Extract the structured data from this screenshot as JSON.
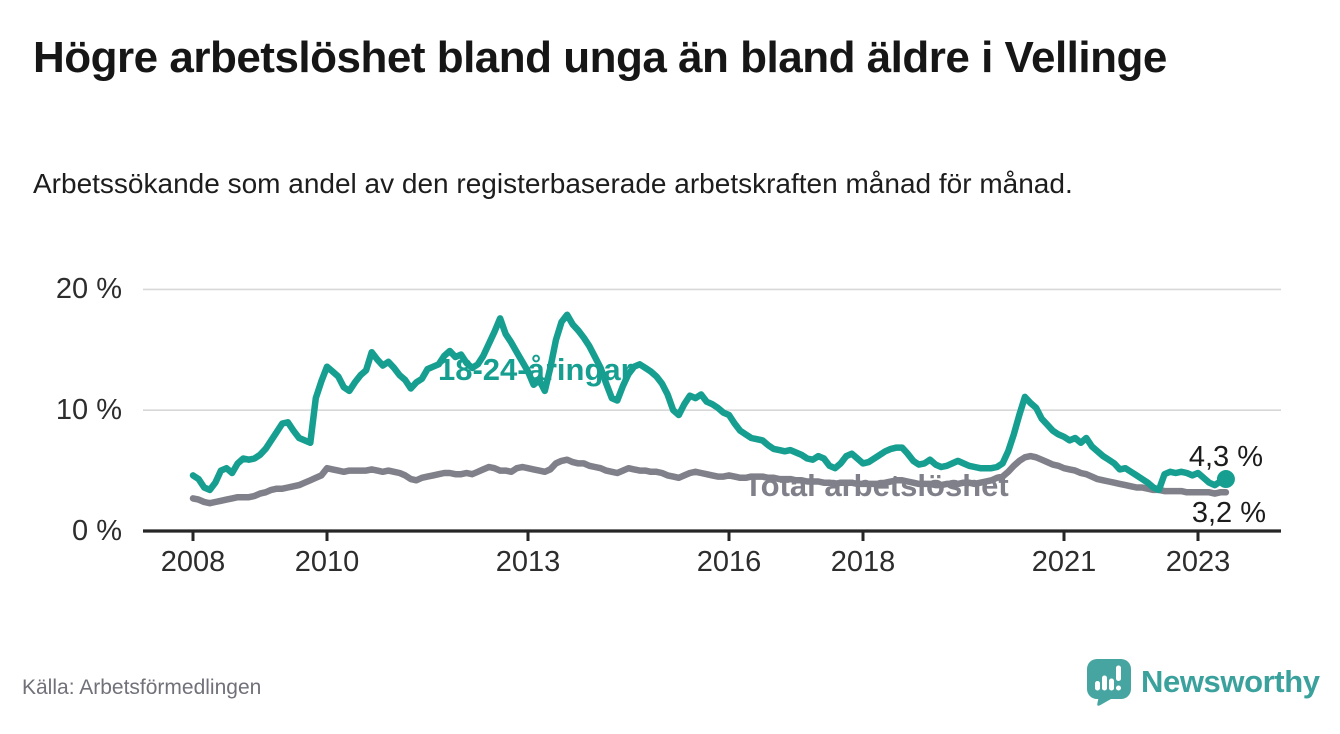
{
  "header": {
    "title": "Högre arbetslöshet bland unga än bland äldre i Vellinge",
    "subtitle": "Arbetssökande som andel av den registerbaserade arbetskraften månad för månad."
  },
  "footer": {
    "source": "Källa: Arbetsförmedlingen",
    "brand": "Newsworthy"
  },
  "colors": {
    "accent_teal": "#169f90",
    "total_gray": "#80808a",
    "gridline": "#d8d8d8",
    "axis": "#262626",
    "brand_teal": "#46a5a1",
    "brand_text_teal": "#3ba19d"
  },
  "chart_data": {
    "type": "line",
    "title": "Högre arbetslöshet bland unga än bland äldre i Vellinge",
    "ylabel": "",
    "xlabel": "",
    "ylim": [
      0,
      21.5
    ],
    "grid": "horizontal",
    "legend_position": "inline-labels",
    "x_start_year": 2008,
    "frequency": "monthly",
    "x_ticks": [
      {
        "year": 2008,
        "label": "2008"
      },
      {
        "year": 2010,
        "label": "2010"
      },
      {
        "year": 2013,
        "label": "2013"
      },
      {
        "year": 2016,
        "label": "2016"
      },
      {
        "year": 2018,
        "label": "2018"
      },
      {
        "year": 2021,
        "label": "2021"
      },
      {
        "year": 2023,
        "label": "2023"
      }
    ],
    "y_ticks": [
      {
        "value": 0,
        "label": "0 %"
      },
      {
        "value": 10,
        "label": "10 %"
      },
      {
        "value": 20,
        "label": "20 %"
      }
    ],
    "series": [
      {
        "name": "18-24-åringar",
        "color_key": "accent_teal",
        "end_label": "4,3 %",
        "end_dot": true,
        "values": [
          4.6,
          4.3,
          3.6,
          3.4,
          4.0,
          5.0,
          5.2,
          4.8,
          5.6,
          6.0,
          5.9,
          6.0,
          6.3,
          6.8,
          7.5,
          8.2,
          8.9,
          9.0,
          8.3,
          7.7,
          7.5,
          7.3,
          11.0,
          12.4,
          13.6,
          13.2,
          12.8,
          11.9,
          11.6,
          12.3,
          12.9,
          13.3,
          14.8,
          14.2,
          13.7,
          14.0,
          13.5,
          12.9,
          12.5,
          11.8,
          12.3,
          12.6,
          13.4,
          13.6,
          13.8,
          14.5,
          14.9,
          14.4,
          14.6,
          13.9,
          13.5,
          13.8,
          14.5,
          15.5,
          16.5,
          17.6,
          16.3,
          15.6,
          14.8,
          14.0,
          13.2,
          12.1,
          12.5,
          11.6,
          13.5,
          15.8,
          17.3,
          17.9,
          17.1,
          16.6,
          16.0,
          15.3,
          14.4,
          13.5,
          12.2,
          11.0,
          10.8,
          12.0,
          13.0,
          13.6,
          13.8,
          13.5,
          13.2,
          12.8,
          12.2,
          11.3,
          10.0,
          9.6,
          10.5,
          11.2,
          11.0,
          11.3,
          10.7,
          10.5,
          10.2,
          9.8,
          9.6,
          8.9,
          8.3,
          8.0,
          7.7,
          7.6,
          7.5,
          7.1,
          6.8,
          6.7,
          6.6,
          6.7,
          6.5,
          6.3,
          6.0,
          5.9,
          6.2,
          6.0,
          5.4,
          5.2,
          5.6,
          6.2,
          6.4,
          6.0,
          5.6,
          5.7,
          6.0,
          6.3,
          6.6,
          6.8,
          6.9,
          6.9,
          6.4,
          5.8,
          5.5,
          5.6,
          5.9,
          5.5,
          5.3,
          5.4,
          5.6,
          5.8,
          5.6,
          5.4,
          5.3,
          5.2,
          5.2,
          5.2,
          5.3,
          5.6,
          6.6,
          8.0,
          9.6,
          11.1,
          10.6,
          10.2,
          9.3,
          8.8,
          8.3,
          8.0,
          7.8,
          7.5,
          7.7,
          7.3,
          7.7,
          7.0,
          6.6,
          6.2,
          5.9,
          5.6,
          5.1,
          5.2,
          4.9,
          4.6,
          4.3,
          4.0,
          3.6,
          3.4,
          4.7,
          4.9,
          4.8,
          4.9,
          4.8,
          4.6,
          4.8,
          4.4,
          4.0,
          3.8,
          4.1,
          4.3
        ]
      },
      {
        "name": "Total arbetslöshet",
        "color_key": "total_gray",
        "end_label": "3,2 %",
        "end_dot": false,
        "values": [
          2.7,
          2.6,
          2.4,
          2.3,
          2.4,
          2.5,
          2.6,
          2.7,
          2.8,
          2.8,
          2.8,
          2.9,
          3.1,
          3.2,
          3.4,
          3.5,
          3.5,
          3.6,
          3.7,
          3.8,
          4.0,
          4.2,
          4.4,
          4.6,
          5.2,
          5.1,
          5.0,
          4.9,
          5.0,
          5.0,
          5.0,
          5.0,
          5.1,
          5.0,
          4.9,
          5.0,
          4.9,
          4.8,
          4.6,
          4.3,
          4.2,
          4.4,
          4.5,
          4.6,
          4.7,
          4.8,
          4.8,
          4.7,
          4.7,
          4.8,
          4.7,
          4.9,
          5.1,
          5.3,
          5.2,
          5.0,
          5.0,
          4.9,
          5.2,
          5.3,
          5.2,
          5.1,
          5.0,
          4.9,
          5.1,
          5.6,
          5.8,
          5.9,
          5.7,
          5.6,
          5.6,
          5.4,
          5.3,
          5.2,
          5.0,
          4.9,
          4.8,
          5.0,
          5.2,
          5.1,
          5.0,
          5.0,
          4.9,
          4.9,
          4.8,
          4.6,
          4.5,
          4.4,
          4.6,
          4.8,
          4.9,
          4.8,
          4.7,
          4.6,
          4.5,
          4.5,
          4.6,
          4.5,
          4.4,
          4.4,
          4.5,
          4.5,
          4.5,
          4.4,
          4.4,
          4.3,
          4.3,
          4.3,
          4.2,
          4.2,
          4.1,
          4.1,
          4.1,
          4.0,
          4.0,
          3.9,
          4.0,
          4.0,
          4.0,
          3.9,
          3.9,
          3.9,
          3.9,
          3.9,
          4.0,
          4.1,
          4.2,
          4.2,
          4.1,
          4.0,
          3.9,
          3.9,
          3.9,
          3.8,
          3.8,
          3.9,
          3.9,
          3.9,
          4.0,
          4.0,
          3.9,
          4.0,
          4.1,
          4.2,
          4.4,
          4.5,
          4.9,
          5.4,
          5.8,
          6.1,
          6.2,
          6.1,
          5.9,
          5.7,
          5.5,
          5.4,
          5.2,
          5.1,
          5.0,
          4.8,
          4.7,
          4.5,
          4.3,
          4.2,
          4.1,
          4.0,
          3.9,
          3.8,
          3.7,
          3.6,
          3.6,
          3.5,
          3.4,
          3.4,
          3.3,
          3.3,
          3.3,
          3.3,
          3.2,
          3.2,
          3.2,
          3.2,
          3.2,
          3.1,
          3.2,
          3.2
        ]
      }
    ]
  }
}
